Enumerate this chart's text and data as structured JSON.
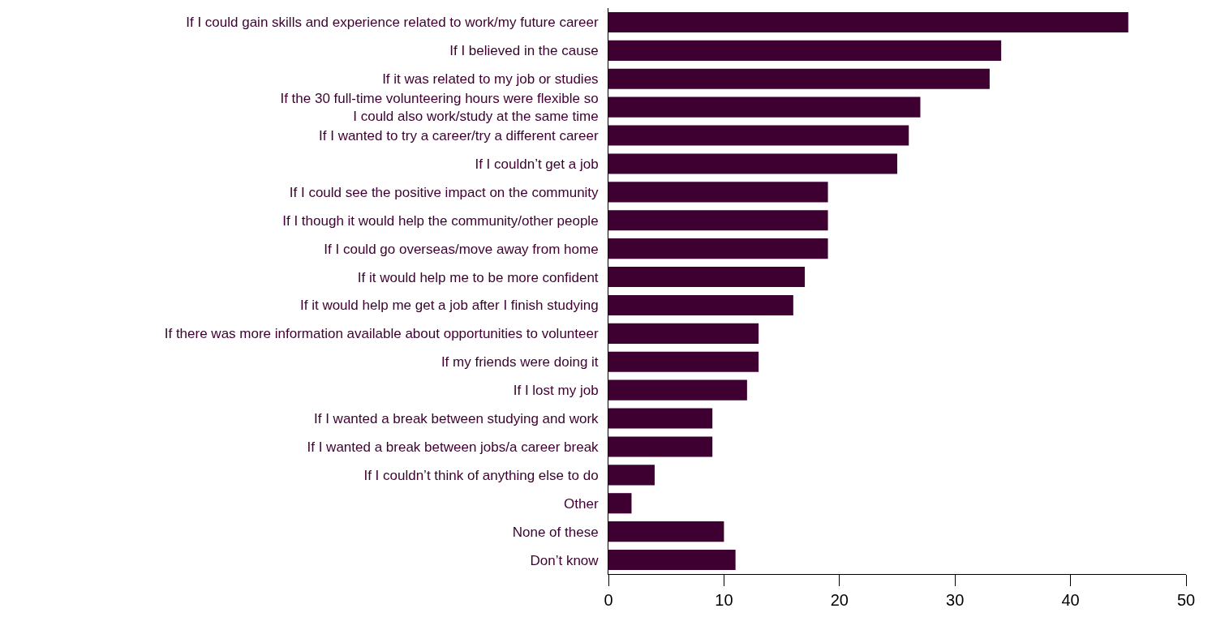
{
  "chart_data": {
    "type": "bar",
    "orientation": "horizontal",
    "categories": [
      "If I could gain skills and experience related to work/my future career",
      "If I believed in the cause",
      "If it was related to my job or studies",
      "If the 30 full-time volunteering hours were flexible so\nI could also work/study at the same time",
      "If I wanted to try a career/try a different career",
      "If I couldn’t get a job",
      "If I could see the positive impact on the community",
      "If I though it would help the community/other people",
      "If I could go overseas/move away from home",
      "If it would help me to be more confident",
      "If it would help me get a job after I finish studying",
      "If there was more information available about opportunities to volunteer",
      "If my friends were doing it",
      "If I lost my job",
      "If I wanted a break between studying and work",
      "If I wanted a break between jobs/a career break",
      "If I couldn’t think of anything else to do",
      "Other",
      "None of these",
      "Don’t know"
    ],
    "values": [
      45,
      34,
      33,
      27,
      26,
      25,
      19,
      19,
      19,
      17,
      16,
      13,
      13,
      12,
      9,
      9,
      4,
      2,
      10,
      11
    ],
    "color": "#3d0030",
    "xlim": [
      0,
      50
    ],
    "xticks": [
      0,
      10,
      20,
      30,
      40,
      50
    ]
  }
}
